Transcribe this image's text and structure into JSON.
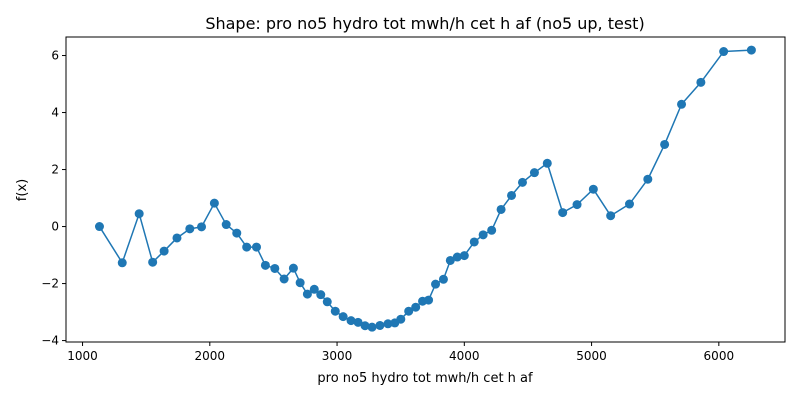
{
  "chart_data": {
    "type": "line",
    "title": "Shape: pro no5 hydro tot mwh/h cet h af (no5 up, test)",
    "xlabel": "pro no5 hydro tot mwh/h cet h af",
    "ylabel": "f(x)",
    "xlim": [
      870,
      6520
    ],
    "ylim": [
      -4.05,
      6.65
    ],
    "x_ticks": [
      1000,
      2000,
      3000,
      4000,
      5000,
      6000
    ],
    "y_ticks": [
      -4,
      -2,
      0,
      2,
      4,
      6
    ],
    "x_tick_labels": [
      "1000",
      "2000",
      "3000",
      "4000",
      "5000",
      "6000"
    ],
    "y_tick_labels": [
      "−4",
      "−2",
      "0",
      "2",
      "4",
      "6"
    ],
    "grid": false,
    "color": "#1f77b4",
    "series": [
      {
        "x": [
          1133,
          1312,
          1445,
          1551,
          1641,
          1742,
          1843,
          1935,
          2036,
          2129,
          2212,
          2290,
          2367,
          2437,
          2511,
          2584,
          2657,
          2710,
          2767,
          2821,
          2872,
          2923,
          2986,
          3048,
          3110,
          3165,
          3220,
          3275,
          3337,
          3400,
          3454,
          3501,
          3563,
          3618,
          3672,
          3719,
          3774,
          3836,
          3890,
          3945,
          4000,
          4078,
          4148,
          4215,
          4289,
          4371,
          4457,
          4551,
          4652,
          4773,
          4886,
          5014,
          5150,
          5298,
          5442,
          5574,
          5707,
          5859,
          6038,
          6256
        ],
        "y": [
          0.0,
          -1.27,
          0.45,
          -1.25,
          -0.86,
          -0.4,
          -0.08,
          -0.01,
          0.82,
          0.07,
          -0.23,
          -0.72,
          -0.72,
          -1.36,
          -1.47,
          -1.84,
          -1.46,
          -1.97,
          -2.37,
          -2.2,
          -2.39,
          -2.64,
          -2.97,
          -3.16,
          -3.3,
          -3.36,
          -3.48,
          -3.53,
          -3.47,
          -3.41,
          -3.38,
          -3.25,
          -2.97,
          -2.83,
          -2.62,
          -2.58,
          -2.02,
          -1.85,
          -1.19,
          -1.07,
          -1.02,
          -0.54,
          -0.29,
          -0.13,
          0.6,
          1.09,
          1.55,
          1.89,
          2.22,
          0.49,
          0.77,
          1.31,
          0.38,
          0.79,
          1.66,
          2.88,
          4.29,
          5.06,
          6.14,
          6.19
        ]
      }
    ]
  }
}
